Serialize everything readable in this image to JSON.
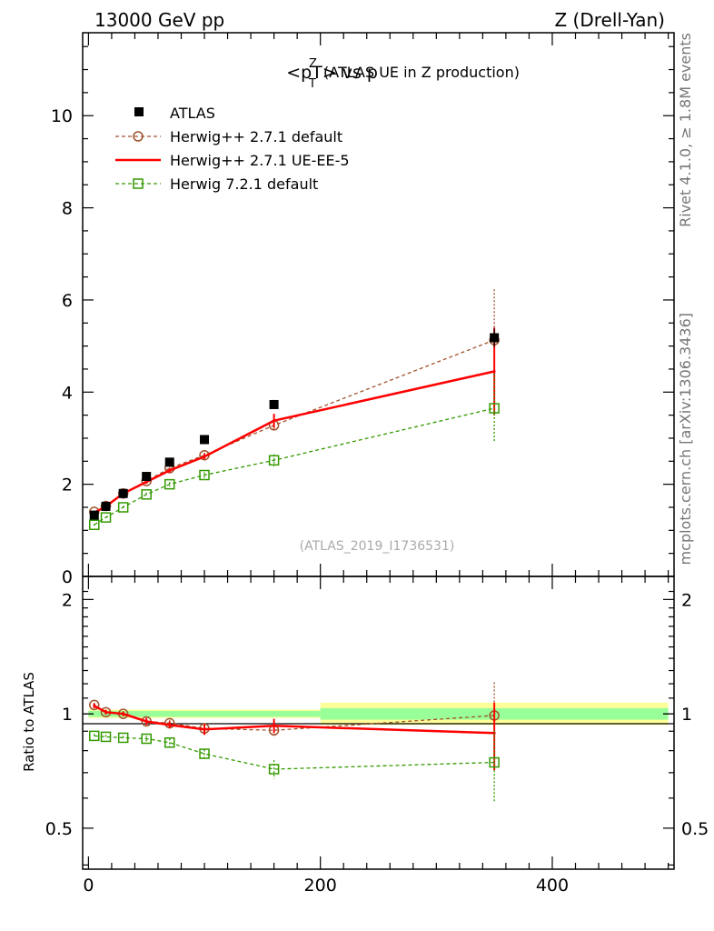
{
  "header": {
    "left": "13000 GeV pp",
    "right": "Z (Drell-Yan)"
  },
  "side": {
    "rivet": "Rivet 4.1.0, ≥ 1.8M events",
    "mcplots": "mcplots.cern.ch [arXiv:1306.3436]"
  },
  "chart_data": [
    {
      "type": "line",
      "title": "<pT> vs p",
      "title_sup": "Z",
      "title_sub": "T",
      "subtitle": "(ATLAS UE in Z production)",
      "watermark": "(ATLAS_2019_I1736531)",
      "xlabel": "",
      "ylabel": "",
      "xlim": [
        -5,
        505
      ],
      "ylim": [
        0,
        11.8
      ],
      "y_ticks": [
        "0",
        "2",
        "4",
        "6",
        "8",
        "10"
      ],
      "x": [
        5,
        15,
        30,
        50,
        70,
        100,
        160,
        350
      ],
      "series": [
        {
          "name": "ATLAS",
          "style": "data",
          "color": "#000000",
          "values": [
            1.33,
            1.52,
            1.8,
            2.17,
            2.48,
            2.97,
            3.73,
            5.18
          ],
          "errors": [
            0.03,
            0.03,
            0.04,
            0.05,
            0.06,
            0.08,
            0.1,
            0.2
          ]
        },
        {
          "name": "Herwig++ 2.7.1 default",
          "style": "dashed-circle",
          "color": "#a0522d",
          "values": [
            1.4,
            1.53,
            1.8,
            2.07,
            2.35,
            2.63,
            3.28,
            5.13
          ],
          "errors": [
            0.02,
            0.02,
            0.03,
            0.04,
            0.05,
            0.06,
            0.12,
            1.1
          ]
        },
        {
          "name": "Herwig++ 2.7.1 UE-EE-5",
          "style": "solid",
          "color": "#ff0000",
          "values": [
            1.38,
            1.52,
            1.8,
            2.05,
            2.3,
            2.6,
            3.38,
            4.45
          ],
          "errors": [
            0.02,
            0.02,
            0.03,
            0.04,
            0.05,
            0.06,
            0.15,
            0.95
          ]
        },
        {
          "name": "Herwig 7.2.1 default",
          "style": "dashed-square",
          "color": "#339900",
          "values": [
            1.12,
            1.28,
            1.5,
            1.78,
            2.0,
            2.2,
            2.52,
            3.65
          ],
          "errors": [
            0.02,
            0.02,
            0.03,
            0.04,
            0.05,
            0.06,
            0.13,
            0.75
          ]
        }
      ]
    },
    {
      "type": "line",
      "title": "",
      "xlabel": "",
      "ylabel": "Ratio to ATLAS",
      "xlim": [
        -5,
        505
      ],
      "ylim": [
        0.39,
        2.3
      ],
      "y_scale": "log",
      "x_ticks": [
        "0",
        "200",
        "400"
      ],
      "y_ticks": [
        "0.5",
        "1",
        "2"
      ],
      "bands": [
        {
          "x": [
            0,
            200
          ],
          "inner": [
            0.982,
            1.018
          ],
          "outer": [
            0.975,
            1.025
          ]
        },
        {
          "x": [
            200,
            500
          ],
          "inner": [
            0.965,
            1.035
          ],
          "outer": [
            0.935,
            1.07
          ]
        }
      ],
      "x": [
        5,
        15,
        30,
        50,
        70,
        100,
        160,
        350
      ],
      "series": [
        {
          "name": "Herwig++ 2.7.1 default",
          "style": "dashed-circle",
          "color": "#a0522d",
          "values": [
            1.055,
            1.01,
            1.0,
            0.955,
            0.945,
            0.915,
            0.905,
            0.99
          ],
          "errors": [
            0.015,
            0.015,
            0.015,
            0.02,
            0.02,
            0.03,
            0.04,
            0.22
          ]
        },
        {
          "name": "Herwig++ 2.7.1 UE-EE-5",
          "style": "solid",
          "color": "#ff0000",
          "values": [
            1.05,
            1.01,
            1.0,
            0.955,
            0.935,
            0.91,
            0.93,
            0.89
          ],
          "errors": [
            0.015,
            0.015,
            0.015,
            0.02,
            0.02,
            0.03,
            0.04,
            0.18
          ]
        },
        {
          "name": "Herwig 7.2.1 default",
          "style": "dashed-square",
          "color": "#339900",
          "values": [
            0.875,
            0.87,
            0.865,
            0.86,
            0.84,
            0.785,
            0.715,
            0.745
          ],
          "errors": [
            0.01,
            0.01,
            0.01,
            0.015,
            0.02,
            0.02,
            0.04,
            0.16
          ]
        }
      ]
    }
  ]
}
